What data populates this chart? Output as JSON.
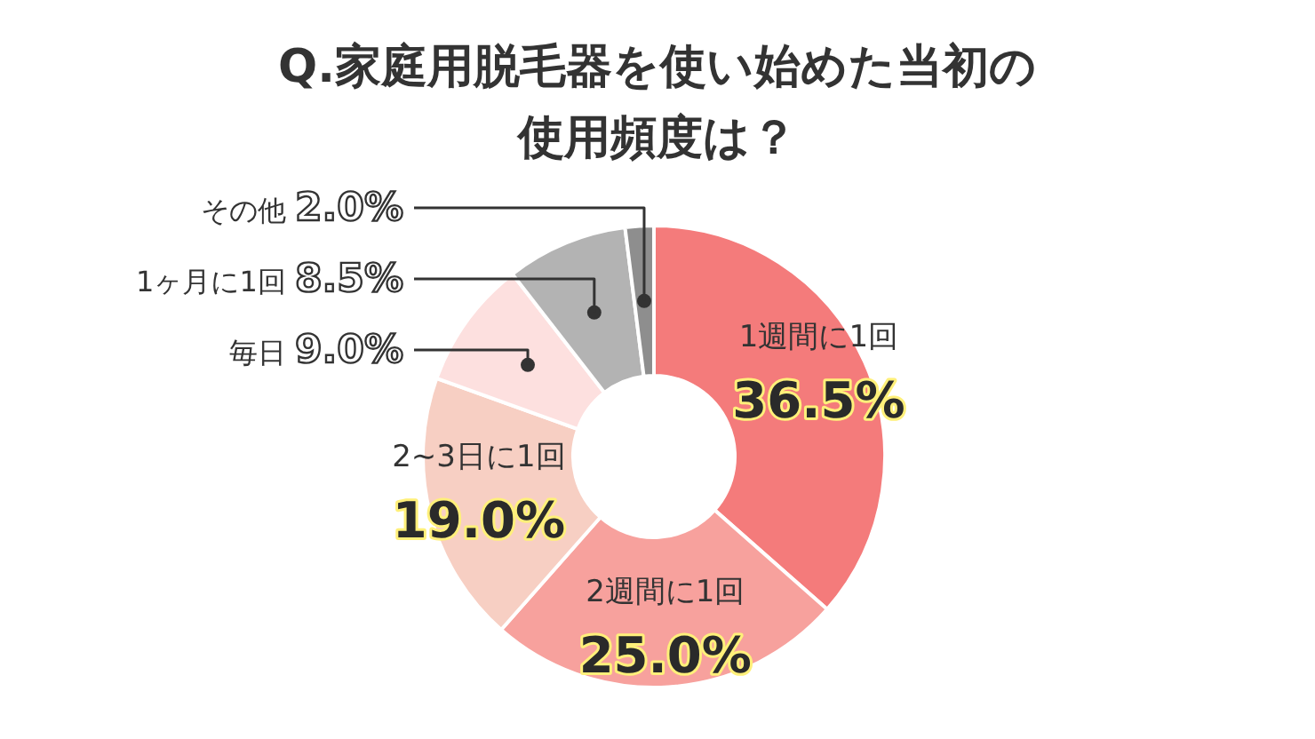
{
  "chart_data": {
    "type": "donut",
    "title": "Q.家庭用脱毛器を使い始めた当初の使用頻度は？",
    "categories": [
      "1週間に1回",
      "2週間に1回",
      "2~3日に1回",
      "毎日",
      "1ヶ月に1回",
      "その他"
    ],
    "values": [
      36.5,
      25.0,
      19.0,
      9.0,
      8.5,
      2.0
    ],
    "value_labels": [
      "36.5%",
      "25.0%",
      "19.0%",
      "9.0%",
      "8.5%",
      "2.0%"
    ],
    "colors": [
      "#f47b7b",
      "#f7a19d",
      "#f7cfc3",
      "#fde0df",
      "#b3b3b3",
      "#8e8e8e"
    ]
  }
}
